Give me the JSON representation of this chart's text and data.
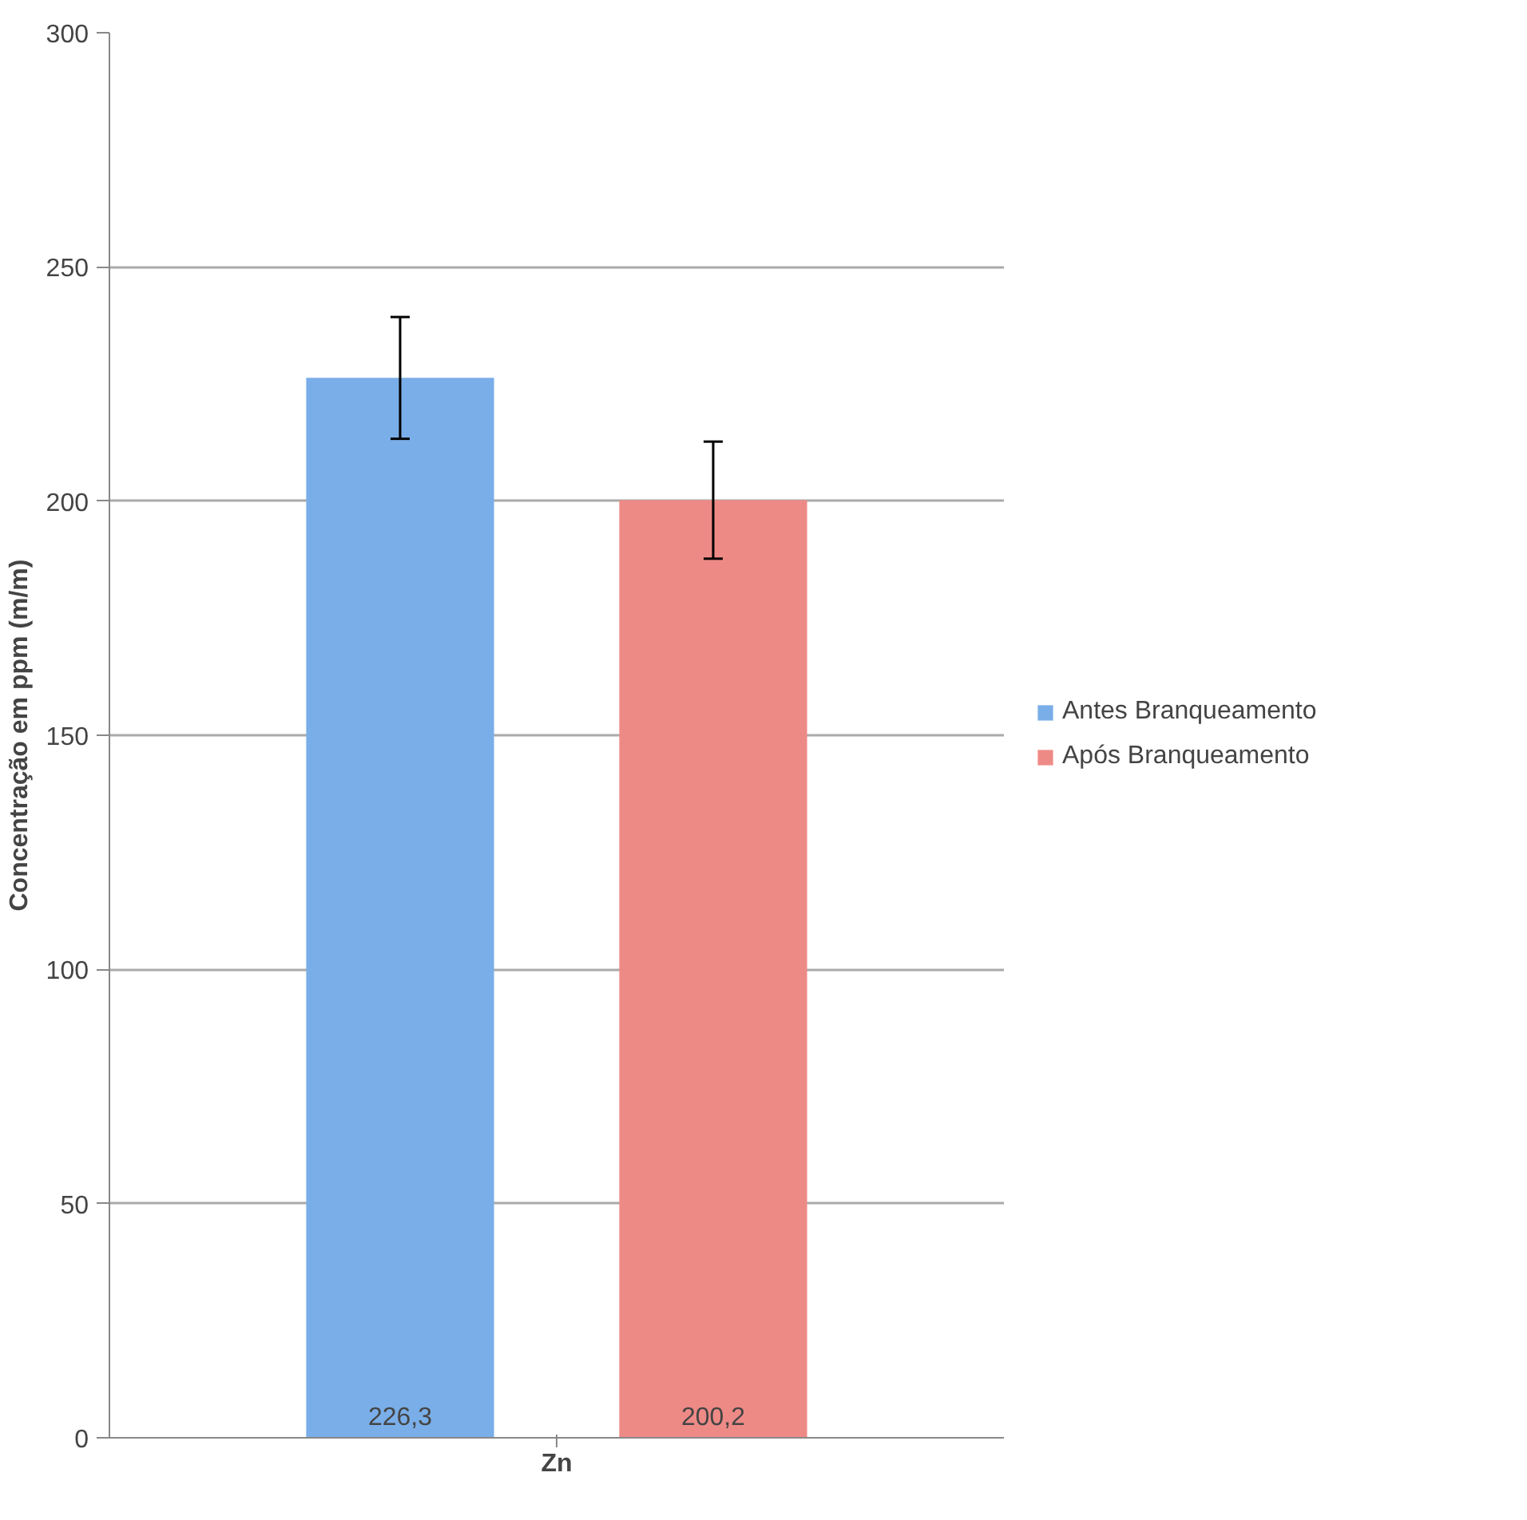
{
  "chart_data": {
    "type": "bar",
    "ylabel": "Concentração em ppm (m/m)",
    "categories": [
      "Zn"
    ],
    "series": [
      {
        "name": "Antes Branqueamento",
        "color": "#7aaee8",
        "values": [
          226.3
        ],
        "errors": [
          13
        ],
        "value_labels": [
          "226,3"
        ]
      },
      {
        "name": "Após Branqueamento",
        "color": "#ee8a86",
        "values": [
          200.2
        ],
        "errors": [
          12.5
        ],
        "value_labels": [
          "200,2"
        ]
      }
    ],
    "ylim": [
      0,
      300
    ],
    "yticks": [
      0,
      50,
      100,
      150,
      200,
      250,
      300
    ],
    "grid": "y",
    "legend": "right"
  }
}
